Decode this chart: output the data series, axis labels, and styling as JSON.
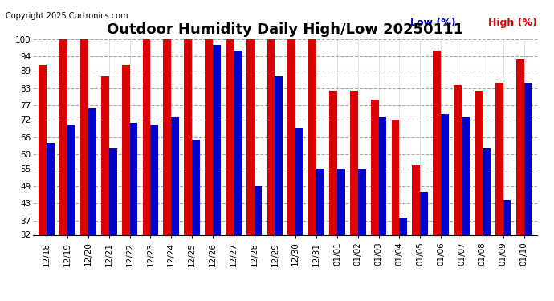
{
  "title": "Outdoor Humidity Daily High/Low 20250111",
  "copyright": "Copyright 2025 Curtronics.com",
  "legend_low": "Low (%)",
  "legend_high": "High (%)",
  "dates": [
    "12/18",
    "12/19",
    "12/20",
    "12/21",
    "12/22",
    "12/23",
    "12/24",
    "12/25",
    "12/26",
    "12/27",
    "12/28",
    "12/29",
    "12/30",
    "12/31",
    "01/01",
    "01/02",
    "01/03",
    "01/04",
    "01/05",
    "01/06",
    "01/07",
    "01/08",
    "01/09",
    "01/10"
  ],
  "high_values": [
    91,
    100,
    100,
    87,
    91,
    100,
    100,
    100,
    100,
    100,
    100,
    100,
    100,
    100,
    82,
    82,
    79,
    72,
    56,
    96,
    84,
    82,
    85,
    93
  ],
  "low_values": [
    64,
    70,
    76,
    62,
    71,
    70,
    73,
    65,
    98,
    96,
    49,
    87,
    69,
    55,
    55,
    55,
    73,
    38,
    47,
    74,
    73,
    62,
    44,
    85
  ],
  "ylim_min": 32,
  "ylim_max": 100,
  "yticks": [
    32,
    37,
    43,
    49,
    55,
    60,
    66,
    72,
    77,
    83,
    89,
    94,
    100
  ],
  "bar_width": 0.38,
  "high_color": "#dd0000",
  "low_color": "#0000cc",
  "bg_color": "#ffffff",
  "grid_color": "#aaaaaa",
  "title_fontsize": 13,
  "tick_fontsize": 7.5,
  "legend_fontsize": 9,
  "copyright_fontsize": 7
}
